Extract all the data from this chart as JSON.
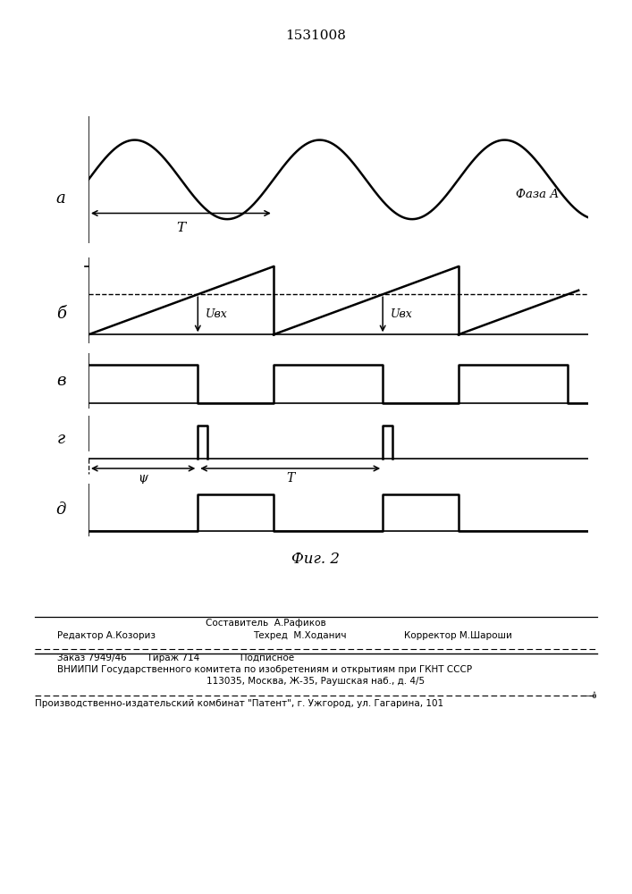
{
  "title": "1531008",
  "fig_caption": "Фиг. 2",
  "label_a": "а",
  "label_b": "б",
  "label_v": "в",
  "label_g": "г",
  "label_d": "д",
  "faza_label": "Фаза А",
  "uvx_label": "Uвх",
  "T_label": "T",
  "T2_label": "T",
  "psi_label": "ψ",
  "bottom_line1": "Заказ 7949/46       Тираж 714              Подписное",
  "bottom_line2": "ВНИИПИ Государственного комитета по изобретениям и открытиям при ГКНТ СССР",
  "bottom_line3": "113035, Москва, Ж-35, Раушская наб., д. 4/5",
  "bottom_line4": "Производственно-издательский комбинат \"Патент\", г. Ужгород, ул. Гагарина, 101",
  "bg_color": "#ffffff",
  "line_color": "#000000"
}
